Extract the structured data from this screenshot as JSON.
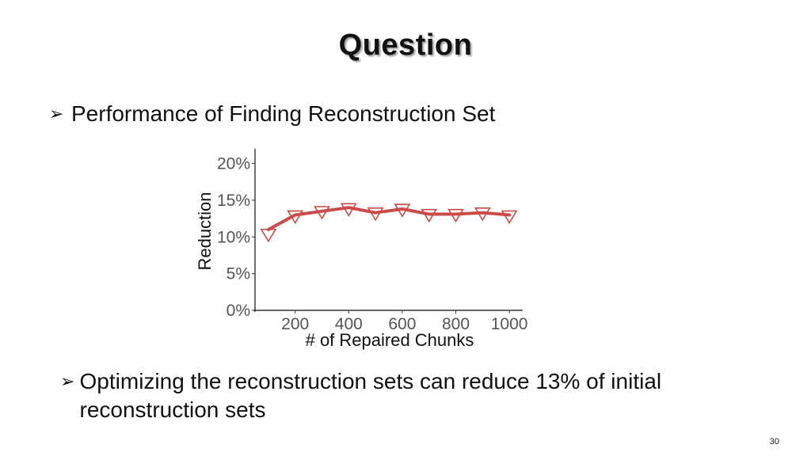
{
  "slide": {
    "title": "Question",
    "bullet1": "Performance of Finding Reconstruction Set",
    "bullet2": "Optimizing the reconstruction sets can reduce 13% of initial reconstruction sets",
    "page_number": "30",
    "bullet_icon": "arrow-bullet-icon"
  },
  "chart_data": {
    "type": "line",
    "xlabel": "# of Repaired Chunks",
    "ylabel": "Reduction",
    "x_ticks": [
      "200",
      "400",
      "600",
      "800",
      "1000"
    ],
    "y_ticks": [
      "0%",
      "5%",
      "10%",
      "15%",
      "20%"
    ],
    "xlim": [
      50,
      1050
    ],
    "ylim": [
      0,
      22
    ],
    "color": "#cc4b48",
    "marker": "downward-triangle",
    "grid": false,
    "series": [
      {
        "x": [
          100,
          200,
          300,
          400,
          500,
          600,
          700,
          800,
          900,
          1000
        ],
        "values": [
          11.0,
          13.0,
          13.5,
          14.0,
          13.3,
          13.8,
          13.1,
          13.1,
          13.3,
          13.0
        ],
        "markers": [
          10.3,
          12.8,
          13.4,
          13.8,
          13.2,
          13.7,
          13.0,
          13.0,
          13.2,
          12.8
        ]
      }
    ]
  }
}
